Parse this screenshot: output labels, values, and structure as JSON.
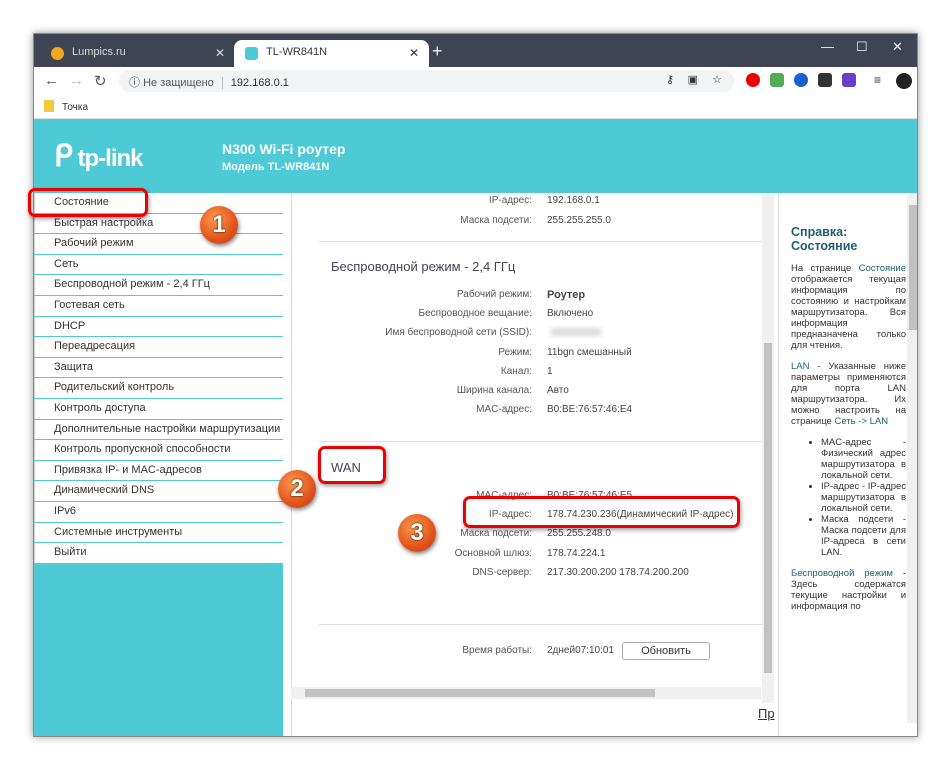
{
  "browser": {
    "tabs": [
      {
        "title": "Lumpics.ru",
        "active": false
      },
      {
        "title": "TL-WR841N",
        "active": true
      }
    ],
    "security": "Не защищено",
    "url": "192.168.0.1",
    "bookmark": "Точка"
  },
  "header": {
    "logo": "tp-link",
    "title": "N300 Wi-Fi роутер",
    "model": "Модель TL-WR841N"
  },
  "sidebar": {
    "items": [
      "Состояние",
      "Быстрая настройка",
      "Рабочий режим",
      "Сеть",
      "Беспроводной режим - 2,4 ГГц",
      "Гостевая сеть",
      "DHCP",
      "Переадресация",
      "Защита",
      "Родительский контроль",
      "Контроль доступа",
      "Дополнительные настройки маршрутизации",
      "Контроль пропускной способности",
      "Привязка IP- и MAC-адресов",
      "Динамический DNS",
      "IPv6",
      "Системные инструменты",
      "Выйти"
    ]
  },
  "lan": {
    "rows": [
      {
        "label": "IP-адрес:",
        "value": "192.168.0.1"
      },
      {
        "label": "Маска подсети:",
        "value": "255.255.255.0"
      }
    ]
  },
  "wireless": {
    "title": "Беспроводной режим - 2,4 ГГц",
    "rows": [
      {
        "label": "Рабочий режим:",
        "value": "Роутер"
      },
      {
        "label": "Беспроводное вещание:",
        "value": "Включено"
      },
      {
        "label": "Имя беспроводной сети (SSID):",
        "value": ""
      },
      {
        "label": "Режим:",
        "value": "11bgn смешанный"
      },
      {
        "label": "Канал:",
        "value": "1"
      },
      {
        "label": "Ширина канала:",
        "value": "Авто"
      },
      {
        "label": "MAC-адрес:",
        "value": "B0:BE:76:57:46:E4"
      }
    ]
  },
  "wan": {
    "title": "WAN",
    "rows": [
      {
        "label": "MAC-адрес:",
        "value": "B0:BE:76:57:46:E5"
      },
      {
        "label": "IP-адрес:",
        "value": "178.74.230.236(Динамический IP-адрес)"
      },
      {
        "label": "Маска подсети:",
        "value": "255.255.248.0"
      },
      {
        "label": "Основной шлюз:",
        "value": "178.74.224.1"
      },
      {
        "label": "DNS-сервер:",
        "value": "217.30.200.200 178.74.200.200"
      }
    ]
  },
  "uptime": {
    "label": "Время работы:",
    "value": "2дней07:10:01",
    "button": "Обновить"
  },
  "bottom_link": "Пр",
  "help": {
    "title": "Справка: Состояние",
    "p1_pre": "На странице",
    "p1_key": "Состояние",
    "p1_post": "отображается текущая информация по состоянию и настройкам маршрутизатора. Вся информация предназначена только для чтения.",
    "p2_key": "LAN",
    "p2_text": " - Указанные ниже параметры применяются для порта LAN маршрутизатора. Их можно настроить на странице ",
    "p2_link": "Сеть -> LAN",
    "bullets": [
      "MAC-адрес - Физический адрес маршрутизатора в локальной сети.",
      "IP-адрес - IP-адрес маршрутизатора в локальной сети.",
      "Маска подсети - Маска подсети для IP-адреса в сети LAN."
    ],
    "p3_key": "Беспроводной режим",
    "p3_text": " - Здесь содержатся текущие настройки и информация по"
  },
  "annotations": [
    "1",
    "2",
    "3"
  ],
  "colors": {
    "brand": "#4ecad6",
    "callout": "#e00000",
    "help_heading": "#1f5f73"
  }
}
